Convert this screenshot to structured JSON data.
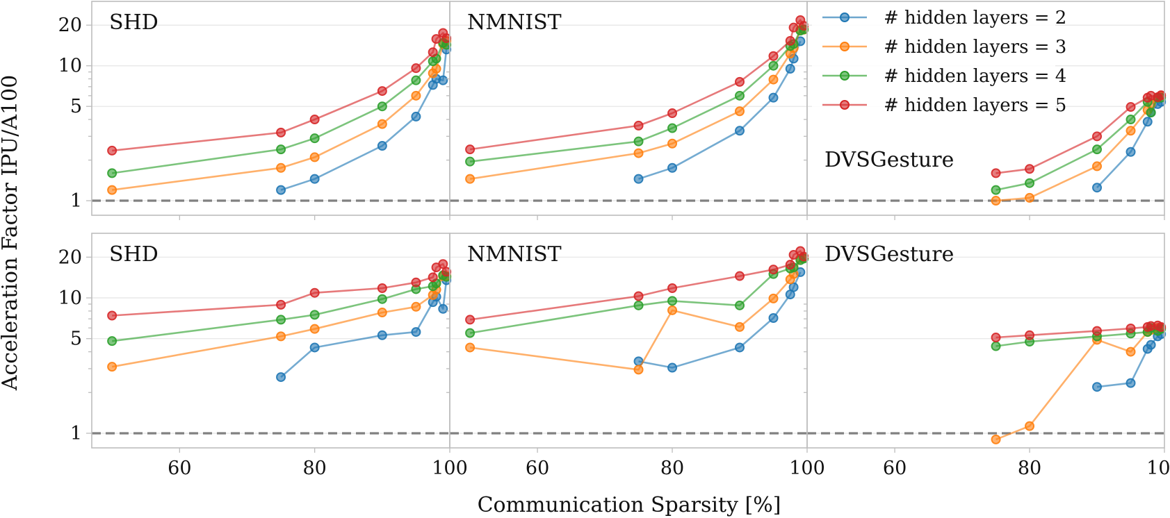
{
  "chart_data": {
    "type": "line",
    "xlabel": "Communication Sparsity [%]",
    "ylabel": "Acceleration Factor IPU/A100",
    "xlim": [
      47,
      100
    ],
    "ylim": [
      0.78,
      30
    ],
    "yscale": "log",
    "xticks": [
      60,
      80,
      100
    ],
    "yticks": [
      1,
      5,
      10,
      20
    ],
    "reference_line": 1,
    "legend": {
      "location": "top-right",
      "entries": [
        {
          "label": "# hidden layers = 2",
          "color": "#1f77b4"
        },
        {
          "label": "# hidden layers = 3",
          "color": "#ff7f0e"
        },
        {
          "label": "# hidden layers = 4",
          "color": "#2ca02c"
        },
        {
          "label": "# hidden layers = 5",
          "color": "#d62728"
        }
      ]
    },
    "panels": [
      {
        "title": "SHD",
        "row": 0,
        "col": 0,
        "series": [
          {
            "name": "# hidden layers = 2",
            "x": [
              75,
              80,
              90,
              95,
              97.5,
              98,
              99,
              99.5
            ],
            "y": [
              1.2,
              1.45,
              2.55,
              4.2,
              7.2,
              8,
              7.8,
              13.2
            ]
          },
          {
            "name": "# hidden layers = 3",
            "x": [
              50,
              75,
              80,
              90,
              95,
              97.5,
              98,
              99,
              99.5
            ],
            "y": [
              1.2,
              1.75,
              2.1,
              3.7,
              6,
              8.8,
              9.5,
              14.5,
              15.3
            ]
          },
          {
            "name": "# hidden layers = 4",
            "x": [
              50,
              75,
              80,
              90,
              95,
              97.5,
              98,
              99,
              99.5
            ],
            "y": [
              1.6,
              2.4,
              2.9,
              5,
              7.8,
              10.8,
              11.3,
              14.8,
              14.3
            ]
          },
          {
            "name": "# hidden layers = 5",
            "x": [
              50,
              75,
              80,
              90,
              95,
              97.5,
              98,
              99,
              99.5
            ],
            "y": [
              2.35,
              3.2,
              4,
              6.5,
              9.6,
              12.6,
              15.8,
              17.5,
              16
            ]
          }
        ]
      },
      {
        "title": "NMNIST",
        "row": 0,
        "col": 1,
        "series": [
          {
            "name": "# hidden layers = 2",
            "x": [
              75,
              80,
              90,
              95,
              97.5,
              98,
              99
            ],
            "y": [
              1.45,
              1.75,
              3.3,
              5.8,
              9.5,
              11.3,
              15.2
            ]
          },
          {
            "name": "# hidden layers = 3",
            "x": [
              50,
              75,
              80,
              90,
              95,
              97.5,
              98,
              99,
              99.5
            ],
            "y": [
              1.45,
              2.25,
              2.65,
              4.6,
              7.9,
              12.3,
              13.5,
              18.5,
              18.5
            ]
          },
          {
            "name": "# hidden layers = 4",
            "x": [
              50,
              75,
              80,
              90,
              95,
              97.5,
              98,
              99,
              99.5
            ],
            "y": [
              1.95,
              2.75,
              3.45,
              6,
              10,
              14,
              14.5,
              18.2,
              18.6
            ]
          },
          {
            "name": "# hidden layers = 5",
            "x": [
              50,
              75,
              80,
              90,
              95,
              97.5,
              98,
              99,
              99.5
            ],
            "y": [
              2.4,
              3.6,
              4.45,
              7.6,
              11.8,
              15.3,
              19.2,
              21.8,
              19.8
            ]
          }
        ]
      },
      {
        "title": "DVSGesture",
        "row": 0,
        "col": 2,
        "series": [
          {
            "name": "# hidden layers = 2",
            "x": [
              90,
              95,
              97.5,
              98,
              99,
              99.5
            ],
            "y": [
              1.25,
              2.3,
              3.85,
              4.5,
              5.2,
              5.4
            ]
          },
          {
            "name": "# hidden layers = 3",
            "x": [
              75,
              80,
              90,
              95,
              97.5,
              98,
              99,
              99.5
            ],
            "y": [
              1.0,
              1.05,
              1.8,
              3.3,
              4.7,
              5.2,
              5.8,
              6
            ]
          },
          {
            "name": "# hidden layers = 4",
            "x": [
              75,
              80,
              90,
              95,
              97.5,
              98,
              99,
              99.5
            ],
            "y": [
              1.2,
              1.35,
              2.4,
              4,
              5.4,
              4.5,
              5.8,
              5.8
            ]
          },
          {
            "name": "# hidden layers = 5",
            "x": [
              75,
              80,
              90,
              95,
              97.5,
              98,
              99,
              99.5
            ],
            "y": [
              1.6,
              1.72,
              3,
              4.95,
              5.8,
              6,
              5.85,
              6.05
            ]
          }
        ]
      },
      {
        "title": "SHD",
        "row": 1,
        "col": 0,
        "series": [
          {
            "name": "# hidden layers = 2",
            "x": [
              75,
              80,
              90,
              95,
              97.5,
              98,
              99,
              99.5
            ],
            "y": [
              2.6,
              4.3,
              5.3,
              5.6,
              9.3,
              10.2,
              8.3,
              13.5
            ]
          },
          {
            "name": "# hidden layers = 3",
            "x": [
              50,
              75,
              80,
              90,
              95,
              97.5,
              98,
              99,
              99.5
            ],
            "y": [
              3.1,
              5.2,
              5.9,
              7.8,
              8.6,
              10.5,
              11.5,
              14.5,
              14.5
            ]
          },
          {
            "name": "# hidden layers = 4",
            "x": [
              50,
              75,
              80,
              90,
              95,
              97.5,
              98,
              99,
              99.5
            ],
            "y": [
              4.8,
              6.9,
              7.5,
              9.8,
              11.6,
              12.2,
              12.8,
              14.7,
              14.3
            ]
          },
          {
            "name": "# hidden layers = 5",
            "x": [
              50,
              75,
              80,
              90,
              95,
              97.5,
              98,
              99,
              99.5
            ],
            "y": [
              7.4,
              8.9,
              10.9,
              11.8,
              13,
              14.2,
              16.8,
              17.8,
              15.6
            ]
          }
        ]
      },
      {
        "title": "NMNIST",
        "row": 1,
        "col": 1,
        "series": [
          {
            "name": "# hidden layers = 2",
            "x": [
              75,
              80,
              90,
              95,
              97.5,
              98,
              99
            ],
            "y": [
              3.4,
              3.05,
              4.3,
              7.1,
              10.6,
              12,
              15.5
            ]
          },
          {
            "name": "# hidden layers = 3",
            "x": [
              50,
              75,
              80,
              90,
              95,
              97.5,
              98,
              99,
              99.5
            ],
            "y": [
              4.3,
              2.95,
              8.1,
              6.1,
              9.9,
              13.7,
              15,
              19.5,
              19.8
            ]
          },
          {
            "name": "# hidden layers = 4",
            "x": [
              50,
              75,
              80,
              90,
              95,
              97.5,
              98,
              99,
              99.5
            ],
            "y": [
              5.5,
              8.8,
              9.5,
              8.8,
              15,
              16.5,
              16.8,
              19,
              19.5
            ]
          },
          {
            "name": "# hidden layers = 5",
            "x": [
              50,
              75,
              80,
              90,
              95,
              97.5,
              98,
              99,
              99.5
            ],
            "y": [
              6.9,
              10.3,
              11.8,
              14.5,
              16.2,
              17.6,
              20.8,
              22.2,
              20.2
            ]
          }
        ]
      },
      {
        "title": "DVSGesture",
        "row": 1,
        "col": 2,
        "series": [
          {
            "name": "# hidden layers = 2",
            "x": [
              90,
              95,
              97.5,
              98,
              99,
              99.5
            ],
            "y": [
              2.2,
              2.35,
              4.2,
              4.5,
              5.2,
              5.4
            ]
          },
          {
            "name": "# hidden layers = 3",
            "x": [
              75,
              80,
              90,
              95,
              97.5,
              98,
              99,
              99.5
            ],
            "y": [
              0.9,
              1.13,
              4.9,
              4,
              5.6,
              5.8,
              6,
              6
            ]
          },
          {
            "name": "# hidden layers = 4",
            "x": [
              75,
              80,
              90,
              95,
              97.5,
              98,
              99,
              99.5
            ],
            "y": [
              4.4,
              4.75,
              5.2,
              5.45,
              5.6,
              6,
              5.7,
              5.9
            ]
          },
          {
            "name": "# hidden layers = 5",
            "x": [
              75,
              80,
              90,
              95,
              97.5,
              98,
              99,
              99.5
            ],
            "y": [
              5.1,
              5.3,
              5.7,
              5.95,
              6.1,
              6.2,
              6.25,
              6.1
            ]
          }
        ]
      }
    ]
  }
}
